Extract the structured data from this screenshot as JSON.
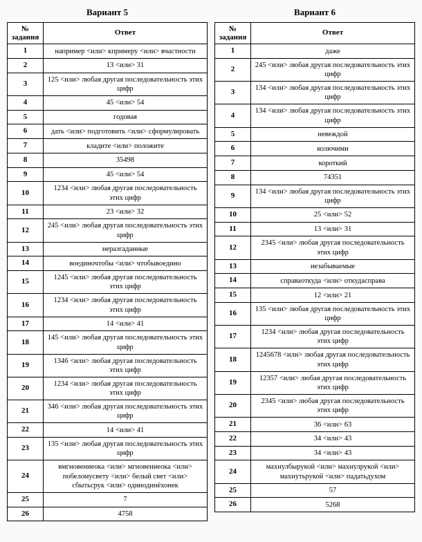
{
  "variant5": {
    "title": "Вариант 5",
    "header_num_line1": "№",
    "header_num_line2": "задания",
    "header_answer": "Ответ",
    "rows": [
      {
        "n": "1",
        "a": "например <или> кпримеру <или> вчастности"
      },
      {
        "n": "2",
        "a": "13 <или> 31"
      },
      {
        "n": "3",
        "a": "125 <или> любая другая последовательность этих цифр"
      },
      {
        "n": "4",
        "a": "45 <или> 54"
      },
      {
        "n": "5",
        "a": "годовая"
      },
      {
        "n": "6",
        "a": "дать <или> подготовить <или> сформулировать"
      },
      {
        "n": "7",
        "a": "кладите <или> положите"
      },
      {
        "n": "8",
        "a": "35498"
      },
      {
        "n": "9",
        "a": "45 <или> 54"
      },
      {
        "n": "10",
        "a": "1234 <или> любая другая последовательность этих цифр"
      },
      {
        "n": "11",
        "a": "23 <или> 32"
      },
      {
        "n": "12",
        "a": "245 <или> любая другая последовательность этих цифр"
      },
      {
        "n": "13",
        "a": "неразгаданные"
      },
      {
        "n": "14",
        "a": "воединочтобы <или> чтобывоедино"
      },
      {
        "n": "15",
        "a": "1245 <или> любая другая последовательность этих цифр"
      },
      {
        "n": "16",
        "a": "1234 <или> любая другая последовательность этих цифр"
      },
      {
        "n": "17",
        "a": "14 <или> 41"
      },
      {
        "n": "18",
        "a": "145 <или> любая другая последовательность этих цифр"
      },
      {
        "n": "19",
        "a": "1346 <или> любая другая последовательность этих цифр"
      },
      {
        "n": "20",
        "a": "1234 <или> любая другая последовательность этих цифр"
      },
      {
        "n": "21",
        "a": "346 <или> любая другая последовательность этих цифр"
      },
      {
        "n": "22",
        "a": "14 <или> 41"
      },
      {
        "n": "23",
        "a": "135 <или> любая другая последовательность этих цифр"
      },
      {
        "n": "24",
        "a": "вмгновениеока <или> мгновениеока <или> побеломусвету <или> белый свет <или> сбытьсрук <или> одинодинёхонек"
      },
      {
        "n": "25",
        "a": "7"
      },
      {
        "n": "26",
        "a": "4758"
      }
    ]
  },
  "variant6": {
    "title": "Вариант 6",
    "header_num_line1": "№",
    "header_num_line2": "задания",
    "header_answer": "Ответ",
    "rows": [
      {
        "n": "1",
        "a": "даже"
      },
      {
        "n": "2",
        "a": "245 <или> любая другая последовательность этих цифр"
      },
      {
        "n": "3",
        "a": "134 <или> любая другая последовательность этих цифр"
      },
      {
        "n": "4",
        "a": "134 <или> любая другая последовательность этих цифр"
      },
      {
        "n": "5",
        "a": "невеждой"
      },
      {
        "n": "6",
        "a": "колючими"
      },
      {
        "n": "7",
        "a": "короткий"
      },
      {
        "n": "8",
        "a": "74351"
      },
      {
        "n": "9",
        "a": "134 <или> любая другая последовательность этих цифр"
      },
      {
        "n": "10",
        "a": "25 <или> 52"
      },
      {
        "n": "11",
        "a": "13 <или> 31"
      },
      {
        "n": "12",
        "a": "2345 <или> любая другая последовательность этих цифр"
      },
      {
        "n": "13",
        "a": "незабываемые"
      },
      {
        "n": "14",
        "a": "справаоткуда <или> откудасправа"
      },
      {
        "n": "15",
        "a": "12 <или> 21"
      },
      {
        "n": "16",
        "a": "135 <или> любая другая последовательность этих цифр"
      },
      {
        "n": "17",
        "a": "1234 <или> любая другая последовательность этих цифр"
      },
      {
        "n": "18",
        "a": "1245678 <или> любая другая последовательность этих цифр"
      },
      {
        "n": "19",
        "a": "12357 <или> любая другая последовательность этих цифр"
      },
      {
        "n": "20",
        "a": "2345 <или> любая другая последовательность этих цифр"
      },
      {
        "n": "21",
        "a": "36 <или> 63"
      },
      {
        "n": "22",
        "a": "34 <или> 43"
      },
      {
        "n": "23",
        "a": "34 <или> 43"
      },
      {
        "n": "24",
        "a": "махнулбырукой <или> махнулрукой <или> махнутьрукой <или> падатьдухом"
      },
      {
        "n": "25",
        "a": "57"
      },
      {
        "n": "26",
        "a": "5268"
      }
    ]
  }
}
